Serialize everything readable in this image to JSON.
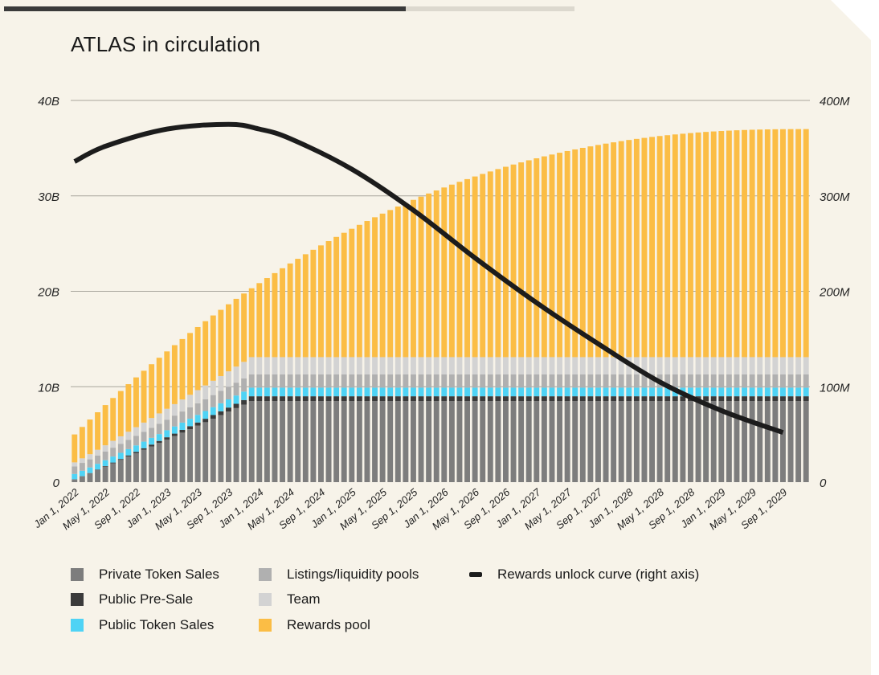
{
  "title": "ATLAS in circulation",
  "colors": {
    "background": "#f7f3e9",
    "private_token_sales": "#7d7d7d",
    "public_pre_sale": "#3b3b3b",
    "public_token_sales": "#4fd3f5",
    "listings_liquidity_pools": "#b0b0b0",
    "team": "#d3d3d3",
    "rewards_pool": "#fbbd45",
    "rewards_curve": "#1c1c1c",
    "grid": "#a8a59c"
  },
  "legend": {
    "private_token_sales": "Private Token Sales",
    "public_pre_sale": "Public Pre-Sale",
    "public_token_sales": "Public Token Sales",
    "listings_liquidity_pools": "Listings/liquidity pools",
    "team": "Team",
    "rewards_pool": "Rewards pool",
    "rewards_curve": "Rewards unlock curve (right axis)"
  },
  "chart_data": {
    "type": "bar",
    "stacked": true,
    "title": "ATLAS in circulation",
    "x_tick_labels": [
      "Jan 1, 2022",
      "May 1, 2022",
      "Sep 1, 2022",
      "Jan 1, 2023",
      "May 1, 2023",
      "Sep 1, 2023",
      "Jan 1, 2024",
      "May 1, 2024",
      "Sep 1, 2024",
      "Jan 1, 2025",
      "May 1, 2025",
      "Sep 1, 2025",
      "Jan 1, 2026",
      "May 1, 2026",
      "Sep 1, 2026",
      "Jan 1, 2027",
      "May 1, 2027",
      "Sep 1, 2027",
      "Jan 1, 2028",
      "May 1, 2028",
      "Sep 1, 2028",
      "Jan 1, 2029",
      "May 1, 2029",
      "Sep 1, 2029"
    ],
    "bar_count": 96,
    "y_left": {
      "ticks": [
        "0",
        "10B",
        "20B",
        "30B",
        "40B"
      ],
      "range": [
        0,
        40000000000
      ]
    },
    "y_right": {
      "ticks": [
        "0",
        "100M",
        "200M",
        "300M",
        "400M"
      ],
      "range": [
        0,
        400000000
      ]
    },
    "series_final_values": {
      "private_token_sales": 8500000000,
      "public_pre_sale": 500000000,
      "public_token_sales": 900000000,
      "listings_liquidity_pools": 1400000000,
      "team": 1800000000,
      "rewards_pool_total_top": 37000000000
    },
    "series_ramp_months": {
      "private_token_sales": 24,
      "public_token_sales": 24,
      "team": 24
    },
    "rewards_curve_points": [
      {
        "x": "Jan 1, 2022",
        "y": 336000000
      },
      {
        "x": "May 1, 2022",
        "y": 352000000
      },
      {
        "x": "Jan 1, 2023",
        "y": 370000000
      },
      {
        "x": "Sep 1, 2023",
        "y": 375000000
      },
      {
        "x": "Jan 1, 2024",
        "y": 370000000
      },
      {
        "x": "May 1, 2024",
        "y": 360000000
      },
      {
        "x": "Jan 1, 2025",
        "y": 328000000
      },
      {
        "x": "Sep 1, 2025",
        "y": 285000000
      },
      {
        "x": "May 1, 2026",
        "y": 235000000
      },
      {
        "x": "Jan 1, 2027",
        "y": 188000000
      },
      {
        "x": "Sep 1, 2027",
        "y": 145000000
      },
      {
        "x": "May 1, 2028",
        "y": 105000000
      },
      {
        "x": "Jan 1, 2029",
        "y": 75000000
      },
      {
        "x": "Sep 1, 2029",
        "y": 52000000
      }
    ]
  }
}
